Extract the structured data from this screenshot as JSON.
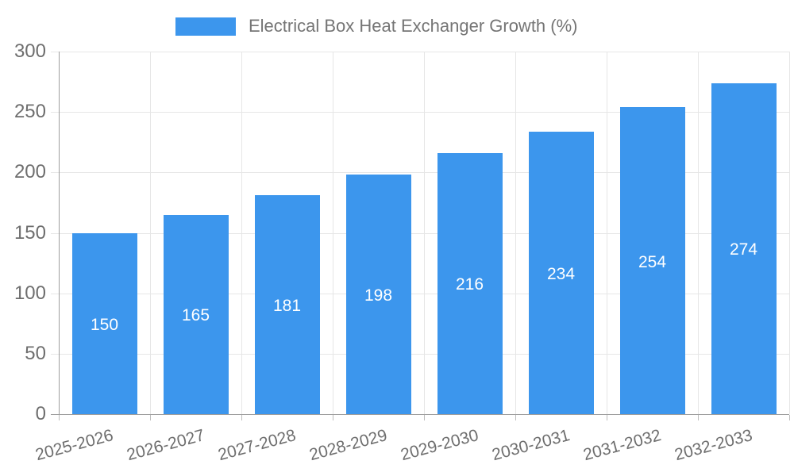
{
  "chart_data": {
    "type": "bar",
    "title": "Electrical Box Heat Exchanger Growth (%)",
    "legend_position": "top",
    "categories": [
      "2025-2026",
      "2026-2027",
      "2027-2028",
      "2028-2029",
      "2029-2030",
      "2030-2031",
      "2031-2032",
      "2032-2033"
    ],
    "series": [
      {
        "name": "Electrical Box Heat Exchanger Growth (%)",
        "values": [
          150,
          165,
          181,
          198,
          216,
          234,
          254,
          274
        ]
      }
    ],
    "bar_labels": [
      "150",
      "165",
      "181",
      "198",
      "216",
      "234",
      "254",
      "274"
    ],
    "xlabel": "",
    "ylabel": "",
    "ylim": [
      0,
      300
    ],
    "yticks": [
      0,
      50,
      100,
      150,
      200,
      250,
      300
    ],
    "ytick_labels": [
      "0",
      "50",
      "100",
      "150",
      "200",
      "250",
      "300"
    ],
    "grid": "on",
    "colors": {
      "bar": "#3c96ed",
      "bar_label": "#ffffff",
      "axis_line": "#9e9e9e",
      "gridline": "#e6e6e6",
      "minor_tick": "#bdbdbd",
      "tick_text": "#6e6e6e",
      "legend_text": "#757575",
      "background": "#ffffff"
    }
  }
}
